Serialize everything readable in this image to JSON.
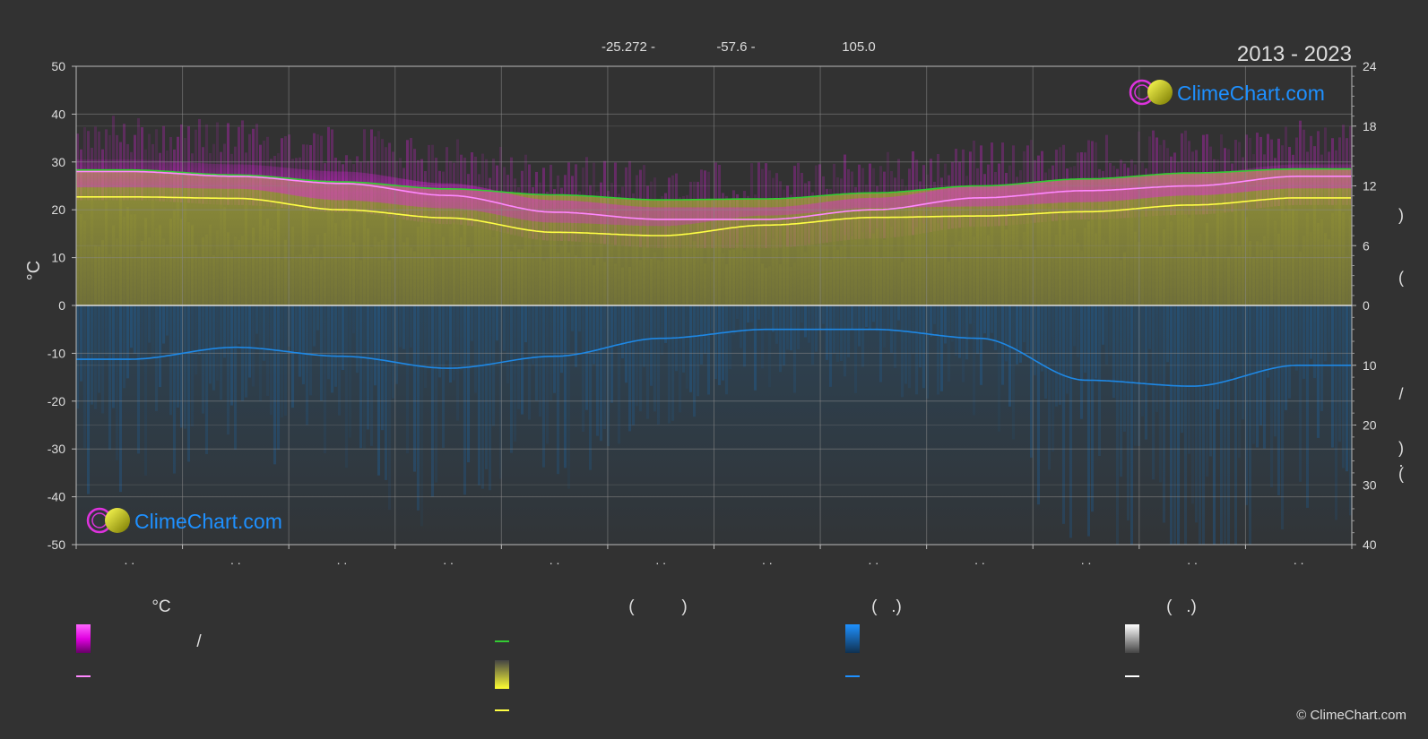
{
  "header": {
    "lat": "-25.272 -",
    "lon": "-57.6 -",
    "elev": "105.0",
    "years": "2013 - 2023"
  },
  "brand": {
    "name": "ClimeChart.com",
    "copyright": "© ClimeChart.com"
  },
  "colors": {
    "background": "#323232",
    "temp_range": "#e020e0",
    "daylight": "#33cc33",
    "sunshine": "#d8d830",
    "precip": "#1e88e5",
    "max_temp": "#ff88ff",
    "min_temp": "#ffff44",
    "brand": "#1e90ff"
  },
  "chart_data": {
    "type": "area",
    "months": 12,
    "x_tick_labels": [
      ". .",
      ". .",
      ". .",
      ". .",
      ". .",
      ". .",
      ". .",
      ". .",
      ". .",
      ". .",
      ". .",
      ". ."
    ],
    "y_left": {
      "label": "°C",
      "range": [
        -50,
        50
      ],
      "ticks": [
        "50",
        "40",
        "30",
        "20",
        "10",
        "0",
        "-10",
        "-20",
        "-30",
        "-40",
        "-50"
      ]
    },
    "y_right_top": {
      "range": [
        0,
        24
      ],
      "ticks": [
        "24",
        "18",
        "12",
        "6",
        "0"
      ],
      "label_marks": [
        ")",
        "("
      ]
    },
    "y_right_bottom": {
      "range": [
        0,
        40
      ],
      "ticks": [
        "10",
        "20",
        "30",
        "40"
      ],
      "label_marks": [
        "/",
        ")",
        "·",
        "("
      ]
    },
    "grid": true,
    "series": [
      {
        "key": "daylight",
        "axis": "hours",
        "values": [
          13.6,
          13.1,
          12.4,
          11.7,
          11.1,
          10.6,
          10.7,
          11.3,
          12.0,
          12.7,
          13.3,
          13.7
        ]
      },
      {
        "key": "max_temp",
        "axis": "temp",
        "values": [
          28.0,
          27.0,
          25.5,
          23.0,
          19.5,
          18.0,
          18.0,
          20.0,
          22.5,
          24.0,
          25.0,
          27.0
        ]
      },
      {
        "key": "min_temp",
        "axis": "temp",
        "values": [
          22.7,
          22.4,
          20.0,
          18.3,
          15.3,
          14.6,
          16.8,
          18.4,
          18.7,
          19.6,
          21.0,
          22.5
        ]
      },
      {
        "key": "precip",
        "axis": "precip",
        "values": [
          9.0,
          7.0,
          8.5,
          10.5,
          8.5,
          5.5,
          4.0,
          4.0,
          5.5,
          12.5,
          13.5,
          10.0
        ]
      }
    ]
  },
  "legend": {
    "col1": {
      "header": "°C",
      "row1": "/"
    },
    "col2": {
      "header": "(          )"
    },
    "col3": {
      "header": "(   .)"
    },
    "col4": {
      "header": "(   .)"
    }
  }
}
